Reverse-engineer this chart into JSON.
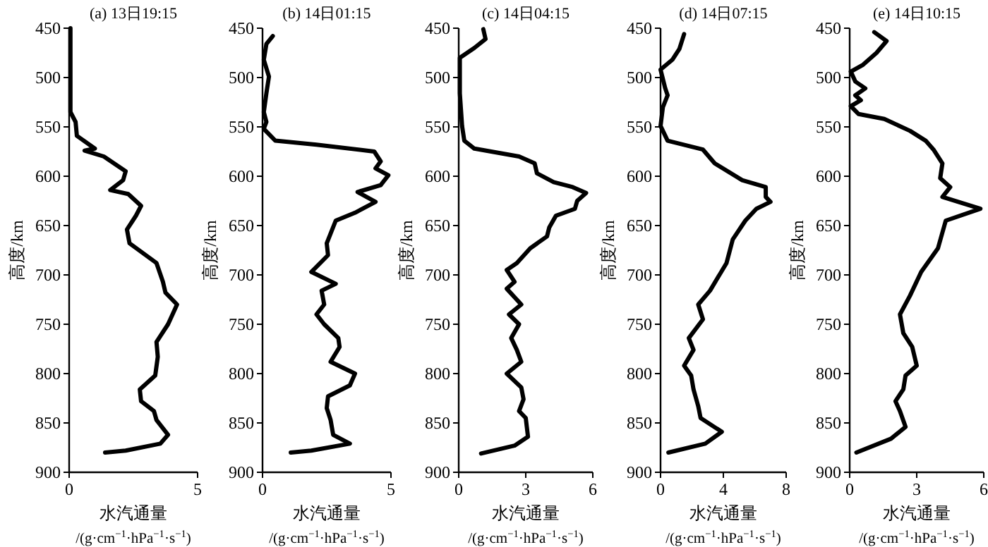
{
  "chart_data": [
    {
      "type": "line",
      "title": "(a) 13日19:15",
      "xlabel": "水汽通量\n/(g·cm$^{−1}$·hPa$^{−1}$·s$^{−1}$)",
      "ylabel": "高度/km",
      "xlim": [
        0,
        5
      ],
      "xticks": [
        0,
        5
      ],
      "ylim": [
        900,
        450
      ],
      "yticks": [
        450,
        500,
        550,
        600,
        650,
        700,
        750,
        800,
        850,
        900
      ],
      "series": [
        {
          "color": "#000000",
          "x": [
            0.05,
            0.05,
            0.25,
            0.3,
            1.0,
            0.6,
            1.35,
            2.2,
            2.1,
            1.6,
            2.3,
            2.8,
            2.6,
            2.25,
            2.35,
            3.4,
            3.65,
            3.75,
            4.2,
            3.85,
            3.4,
            3.45,
            3.35,
            2.75,
            2.8,
            3.3,
            3.4,
            3.85,
            3.55,
            2.2,
            1.4
          ],
          "values": [
            450,
            535,
            545,
            559,
            572,
            574,
            580,
            595,
            604,
            614,
            618,
            630,
            640,
            654,
            668,
            688,
            707,
            718,
            730,
            750,
            768,
            783,
            802,
            816,
            828,
            838,
            847,
            862,
            871,
            878,
            880
          ]
        }
      ]
    },
    {
      "type": "line",
      "title": "(b) 14日01:15",
      "xlabel": "水汽通量\n/(g·cm$^{−1}$·hPa$^{−1}$·s$^{−1}$)",
      "ylabel": "高度/km",
      "xlim": [
        0,
        5
      ],
      "xticks": [
        0,
        5
      ],
      "ylim": [
        900,
        450
      ],
      "yticks": [
        450,
        500,
        550,
        600,
        650,
        700,
        750,
        800,
        850,
        900
      ],
      "series": [
        {
          "color": "#000000",
          "x": [
            0.4,
            0.15,
            0.05,
            0.25,
            0.15,
            0.05,
            0.15,
            0.05,
            0.5,
            2.1,
            4.35,
            4.6,
            4.4,
            4.9,
            4.6,
            3.7,
            4.4,
            3.6,
            2.85,
            2.5,
            2.55,
            1.9,
            2.85,
            2.3,
            2.4,
            2.1,
            2.4,
            2.95,
            3.0,
            2.65,
            3.6,
            3.4,
            2.55,
            2.5,
            2.65,
            2.75,
            3.4,
            1.9,
            1.1
          ],
          "values": [
            458,
            466,
            482,
            499,
            516,
            535,
            545,
            552,
            564,
            568,
            575,
            585,
            592,
            599,
            609,
            616,
            626,
            637,
            645,
            668,
            680,
            697,
            709,
            716,
            730,
            740,
            750,
            764,
            773,
            788,
            800,
            812,
            823,
            835,
            847,
            862,
            871,
            878,
            880
          ]
        }
      ]
    },
    {
      "type": "line",
      "title": "(c) 14日04:15",
      "xlabel": "水汽通量\n/(g·cm$^{−1}$·hPa$^{−1}$·s$^{−1}$)",
      "ylabel": "高度/km",
      "xlim": [
        0,
        6
      ],
      "xticks": [
        0,
        3,
        6
      ],
      "ylim": [
        900,
        450
      ],
      "yticks": [
        450,
        500,
        550,
        600,
        650,
        700,
        750,
        800,
        850,
        900
      ],
      "series": [
        {
          "color": "#000000",
          "x": [
            1.1,
            1.2,
            0.7,
            0.05,
            0.05,
            0.15,
            0.25,
            0.7,
            2.7,
            3.4,
            3.5,
            4.25,
            5.1,
            5.7,
            5.3,
            5.2,
            4.35,
            4.05,
            3.95,
            3.2,
            2.6,
            2.15,
            2.5,
            2.15,
            2.8,
            2.25,
            2.7,
            2.35,
            2.6,
            2.8,
            2.15,
            2.8,
            2.9,
            2.7,
            3.0,
            3.1,
            2.5,
            1.0
          ],
          "values": [
            451,
            461,
            470,
            480,
            516,
            549,
            564,
            572,
            580,
            587,
            597,
            606,
            611,
            617,
            625,
            633,
            640,
            652,
            661,
            673,
            688,
            695,
            707,
            714,
            730,
            740,
            750,
            764,
            776,
            788,
            800,
            814,
            826,
            838,
            845,
            864,
            873,
            881
          ]
        }
      ]
    },
    {
      "type": "line",
      "title": "(d) 14日07:15",
      "xlabel": "水汽通量\n/(g·cm$^{−1}$·hPa$^{−1}$·s$^{−1}$)",
      "ylabel": "高度/km",
      "xlim": [
        0,
        8
      ],
      "xticks": [
        0,
        4,
        8
      ],
      "ylim": [
        900,
        450
      ],
      "yticks": [
        450,
        500,
        550,
        600,
        650,
        700,
        750,
        800,
        850,
        900
      ],
      "series": [
        {
          "color": "#000000",
          "x": [
            1.5,
            1.2,
            0.75,
            0.0,
            0.3,
            0.45,
            0.15,
            0.0,
            0.45,
            2.7,
            3.45,
            5.2,
            6.7,
            6.7,
            7.0,
            6.1,
            5.4,
            4.6,
            4.2,
            3.15,
            2.4,
            2.7,
            1.8,
            2.1,
            1.5,
            1.95,
            2.1,
            2.4,
            2.55,
            3.9,
            2.85,
            0.5
          ],
          "values": [
            456,
            471,
            482,
            492,
            511,
            518,
            530,
            549,
            564,
            573,
            587,
            604,
            611,
            621,
            626,
            633,
            645,
            664,
            688,
            716,
            730,
            745,
            764,
            776,
            792,
            802,
            816,
            833,
            845,
            859,
            871,
            880
          ]
        }
      ]
    },
    {
      "type": "line",
      "title": "(e) 14日10:15",
      "xlabel": "水汽通量\n/(g·cm$^{−1}$·hPa$^{−1}$·s$^{−1}$)",
      "ylabel": "高度/km",
      "xlim": [
        0,
        6
      ],
      "xticks": [
        0,
        3,
        6
      ],
      "ylim": [
        900,
        450
      ],
      "yticks": [
        450,
        500,
        550,
        600,
        650,
        700,
        750,
        800,
        850,
        900
      ],
      "series": [
        {
          "color": "#000000",
          "x": [
            1.1,
            1.65,
            1.2,
            0.6,
            0.05,
            0.25,
            0.7,
            0.25,
            0.5,
            0.05,
            0.4,
            1.55,
            2.7,
            3.4,
            3.75,
            4.15,
            4.05,
            4.5,
            4.15,
            5.85,
            4.3,
            3.95,
            3.2,
            2.7,
            2.25,
            2.4,
            2.8,
            3.0,
            2.5,
            2.4,
            2.05,
            2.25,
            2.5,
            1.85,
            0.3
          ],
          "values": [
            454,
            463,
            475,
            487,
            494,
            504,
            511,
            518,
            523,
            529,
            537,
            542,
            554,
            564,
            573,
            587,
            602,
            611,
            621,
            633,
            645,
            673,
            697,
            721,
            740,
            759,
            773,
            792,
            802,
            816,
            828,
            838,
            854,
            866,
            880
          ]
        }
      ]
    }
  ]
}
